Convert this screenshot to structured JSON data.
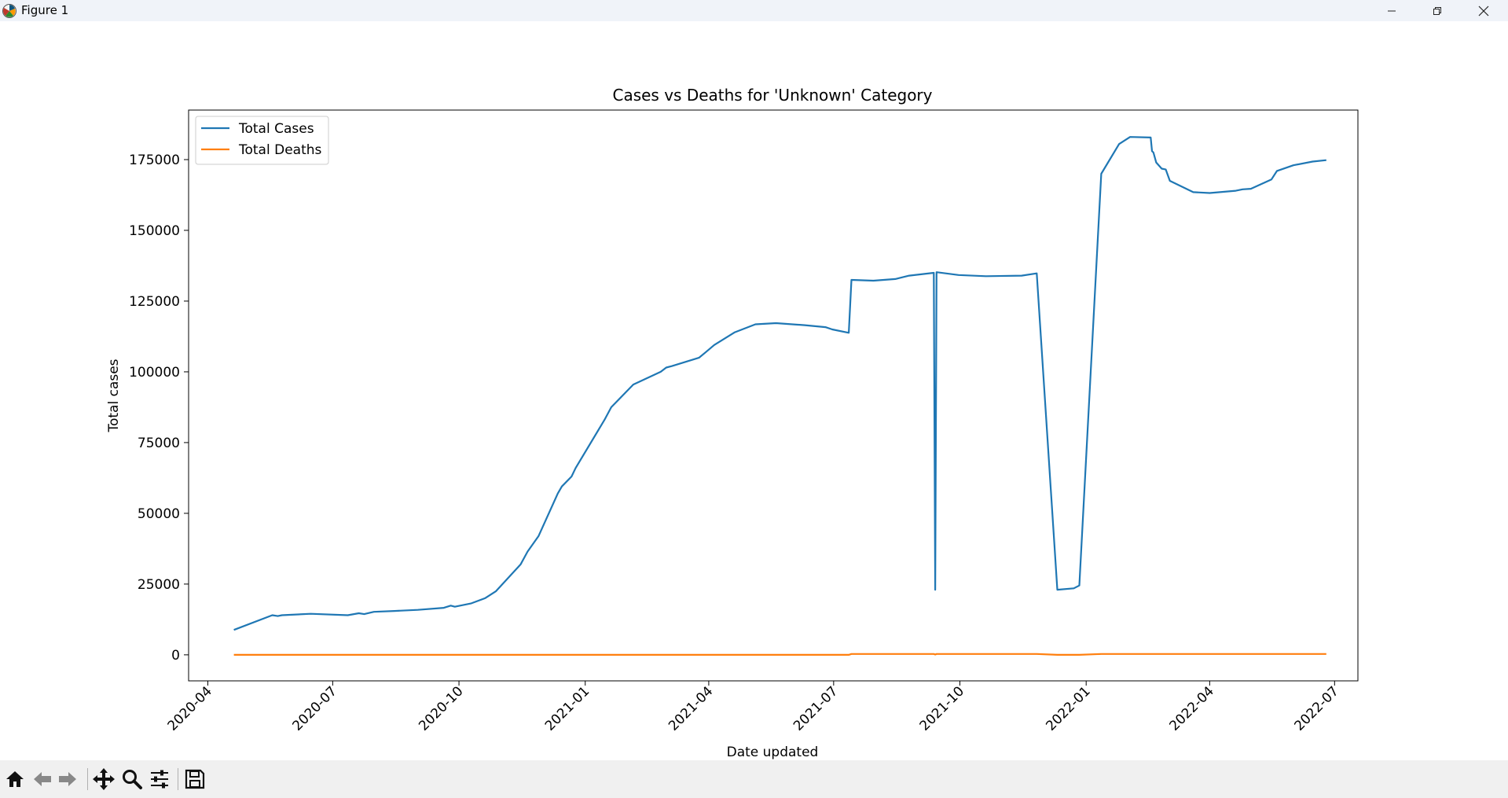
{
  "window": {
    "title": "Figure 1",
    "icons": [
      "matplotlib-logo-icon",
      "minimize-icon",
      "maximize-icon",
      "close-icon"
    ]
  },
  "toolbar": {
    "items": [
      "home-icon",
      "back-arrow-icon",
      "forward-arrow-icon",
      "pan-icon",
      "zoom-icon",
      "configure-subplots-icon",
      "save-icon"
    ]
  },
  "chart_data": {
    "type": "line",
    "title": "Cases vs Deaths for 'Unknown' Category",
    "xlabel": "Date updated",
    "ylabel": "Total cases",
    "x_ticks": [
      "2020-04",
      "2020-07",
      "2020-10",
      "2021-01",
      "2021-04",
      "2021-07",
      "2021-10",
      "2022-01",
      "2022-04",
      "2022-07"
    ],
    "y_ticks": [
      0,
      25000,
      50000,
      75000,
      100000,
      125000,
      150000,
      175000
    ],
    "xlim": [
      "2020-03-18",
      "2022-07-18"
    ],
    "ylim": [
      -9200,
      192500
    ],
    "grid": false,
    "legend": "top-left",
    "colors": {
      "cases": "#1f77b4",
      "deaths": "#ff7f0e"
    },
    "series": [
      {
        "name": "Total Cases",
        "color": "#1f77b4",
        "points": [
          [
            "2020-04-20",
            8800
          ],
          [
            "2020-05-18",
            14000
          ],
          [
            "2020-05-22",
            13700
          ],
          [
            "2020-05-25",
            14000
          ],
          [
            "2020-06-15",
            14500
          ],
          [
            "2020-07-12",
            14000
          ],
          [
            "2020-07-20",
            14700
          ],
          [
            "2020-07-24",
            14400
          ],
          [
            "2020-07-31",
            15200
          ],
          [
            "2020-08-15",
            15500
          ],
          [
            "2020-09-01",
            15900
          ],
          [
            "2020-09-20",
            16600
          ],
          [
            "2020-09-25",
            17400
          ],
          [
            "2020-09-28",
            17000
          ],
          [
            "2020-10-10",
            18200
          ],
          [
            "2020-10-20",
            20000
          ],
          [
            "2020-10-28",
            22500
          ],
          [
            "2020-11-15",
            32000
          ],
          [
            "2020-11-20",
            36500
          ],
          [
            "2020-11-28",
            42000
          ],
          [
            "2020-12-12",
            57000
          ],
          [
            "2020-12-15",
            59500
          ],
          [
            "2020-12-22",
            63000
          ],
          [
            "2020-12-25",
            66000
          ],
          [
            "2021-01-15",
            83000
          ],
          [
            "2021-01-20",
            87500
          ],
          [
            "2021-02-05",
            95500
          ],
          [
            "2021-02-25",
            100000
          ],
          [
            "2021-03-01",
            101500
          ],
          [
            "2021-03-05",
            102000
          ],
          [
            "2021-03-25",
            105000
          ],
          [
            "2021-03-30",
            107000
          ],
          [
            "2021-04-05",
            109500
          ],
          [
            "2021-04-20",
            114000
          ],
          [
            "2021-05-05",
            116800
          ],
          [
            "2021-05-20",
            117200
          ],
          [
            "2021-06-10",
            116500
          ],
          [
            "2021-06-25",
            115800
          ],
          [
            "2021-06-30",
            115000
          ],
          [
            "2021-07-12",
            113800
          ],
          [
            "2021-07-14",
            132500
          ],
          [
            "2021-07-30",
            132200
          ],
          [
            "2021-08-15",
            132800
          ],
          [
            "2021-08-25",
            134000
          ],
          [
            "2021-09-12",
            135000
          ],
          [
            "2021-09-13",
            23000
          ],
          [
            "2021-09-14",
            135200
          ],
          [
            "2021-09-30",
            134200
          ],
          [
            "2021-10-20",
            133800
          ],
          [
            "2021-11-15",
            134000
          ],
          [
            "2021-11-26",
            134800
          ],
          [
            "2021-12-11",
            23000
          ],
          [
            "2021-12-23",
            23500
          ],
          [
            "2021-12-27",
            24500
          ],
          [
            "2022-01-12",
            170000
          ],
          [
            "2022-01-25",
            180500
          ],
          [
            "2022-02-02",
            183000
          ],
          [
            "2022-02-17",
            182800
          ],
          [
            "2022-02-18",
            178000
          ],
          [
            "2022-02-19",
            177500
          ],
          [
            "2022-02-21",
            174000
          ],
          [
            "2022-02-25",
            171800
          ],
          [
            "2022-02-28",
            171500
          ],
          [
            "2022-03-03",
            167500
          ],
          [
            "2022-03-20",
            163500
          ],
          [
            "2022-04-01",
            163200
          ],
          [
            "2022-04-20",
            164000
          ],
          [
            "2022-04-25",
            164500
          ],
          [
            "2022-05-01",
            164700
          ],
          [
            "2022-05-16",
            168000
          ],
          [
            "2022-05-20",
            171000
          ],
          [
            "2022-06-01",
            173000
          ],
          [
            "2022-06-15",
            174300
          ],
          [
            "2022-06-25",
            174800
          ]
        ]
      },
      {
        "name": "Total Deaths",
        "color": "#ff7f0e",
        "points": [
          [
            "2020-04-20",
            0
          ],
          [
            "2021-07-12",
            0
          ],
          [
            "2021-07-14",
            300
          ],
          [
            "2021-09-12",
            300
          ],
          [
            "2021-09-13",
            100
          ],
          [
            "2021-09-14",
            300
          ],
          [
            "2021-11-26",
            300
          ],
          [
            "2021-12-11",
            0
          ],
          [
            "2021-12-27",
            0
          ],
          [
            "2022-01-12",
            300
          ],
          [
            "2022-06-25",
            300
          ]
        ]
      }
    ]
  }
}
